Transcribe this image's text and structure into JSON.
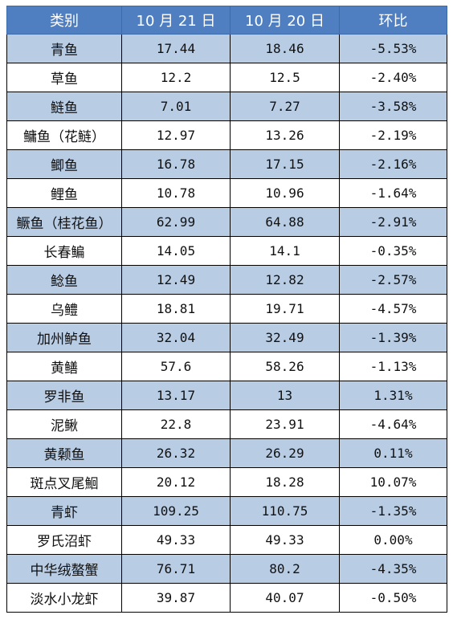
{
  "table": {
    "headers": [
      "类别",
      "10 月 21 日",
      "10 月 20 日",
      "环比"
    ],
    "rows": [
      [
        "青鱼",
        "17.44",
        "18.46",
        "-5.53%"
      ],
      [
        "草鱼",
        "12.2",
        "12.5",
        "-2.40%"
      ],
      [
        "鲢鱼",
        "7.01",
        "7.27",
        "-3.58%"
      ],
      [
        "鳙鱼（花鲢）",
        "12.97",
        "13.26",
        "-2.19%"
      ],
      [
        "鲫鱼",
        "16.78",
        "17.15",
        "-2.16%"
      ],
      [
        "鲤鱼",
        "10.78",
        "10.96",
        "-1.64%"
      ],
      [
        "鳜鱼（桂花鱼）",
        "62.99",
        "64.88",
        "-2.91%"
      ],
      [
        "长春鳊",
        "14.05",
        "14.1",
        "-0.35%"
      ],
      [
        "鲶鱼",
        "12.49",
        "12.82",
        "-2.57%"
      ],
      [
        "乌鳢",
        "18.81",
        "19.71",
        "-4.57%"
      ],
      [
        "加州鲈鱼",
        "32.04",
        "32.49",
        "-1.39%"
      ],
      [
        "黄鳝",
        "57.6",
        "58.26",
        "-1.13%"
      ],
      [
        "罗非鱼",
        "13.17",
        "13",
        "1.31%"
      ],
      [
        "泥鳅",
        "22.8",
        "23.91",
        "-4.64%"
      ],
      [
        "黄颡鱼",
        "26.32",
        "26.29",
        "0.11%"
      ],
      [
        "斑点叉尾鮰",
        "20.12",
        "18.28",
        "10.07%"
      ],
      [
        "青虾",
        "109.25",
        "110.75",
        "-1.35%"
      ],
      [
        "罗氏沼虾",
        "49.33",
        "49.33",
        "0.00%"
      ],
      [
        "中华绒螯蟹",
        "76.71",
        "80.2",
        "-4.35%"
      ],
      [
        "淡水小龙虾",
        "39.87",
        "40.07",
        "-0.50%"
      ]
    ]
  },
  "colors": {
    "header_bg": "#4f7fc0",
    "header_text": "#ffffff",
    "stripe_bg": "#b8cce4",
    "plain_bg": "#ffffff",
    "border": "#000000"
  }
}
